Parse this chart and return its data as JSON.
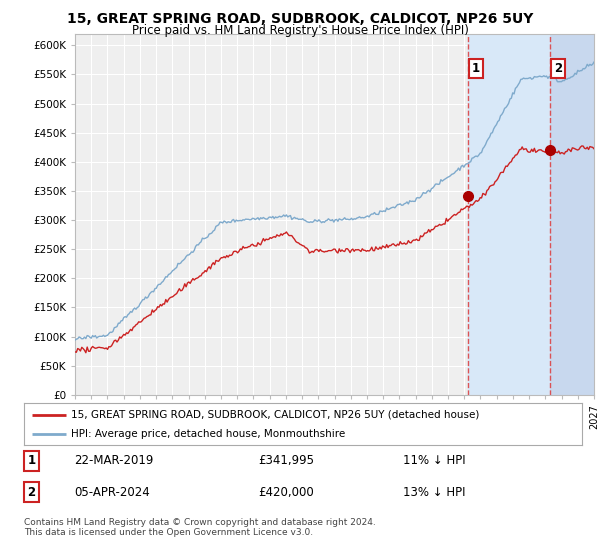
{
  "title": "15, GREAT SPRING ROAD, SUDBROOK, CALDICOT, NP26 5UY",
  "subtitle": "Price paid vs. HM Land Registry's House Price Index (HPI)",
  "ylim": [
    0,
    620000
  ],
  "yticks": [
    0,
    50000,
    100000,
    150000,
    200000,
    250000,
    300000,
    350000,
    400000,
    450000,
    500000,
    550000,
    600000
  ],
  "ytick_labels": [
    "£0",
    "£50K",
    "£100K",
    "£150K",
    "£200K",
    "£250K",
    "£300K",
    "£350K",
    "£400K",
    "£450K",
    "£500K",
    "£550K",
    "£600K"
  ],
  "background_color": "#ffffff",
  "plot_bg_color": "#efefef",
  "grid_color": "#ffffff",
  "hpi_line_color": "#7faacc",
  "price_line_color": "#cc2222",
  "sale1_date": "22-MAR-2019",
  "sale1_price": 341995,
  "sale1_year": 2019.22,
  "sale2_date": "05-APR-2024",
  "sale2_price": 420000,
  "sale2_year": 2024.27,
  "legend_line1": "15, GREAT SPRING ROAD, SUDBROOK, CALDICOT, NP26 5UY (detached house)",
  "legend_line2": "HPI: Average price, detached house, Monmouthshire",
  "footer": "Contains HM Land Registry data © Crown copyright and database right 2024.\nThis data is licensed under the Open Government Licence v3.0.",
  "sale1_hpi_diff": "11% ↓ HPI",
  "sale2_hpi_diff": "13% ↓ HPI",
  "hatch_color": "#c8d8ee",
  "shade_color": "#d8e8f8"
}
